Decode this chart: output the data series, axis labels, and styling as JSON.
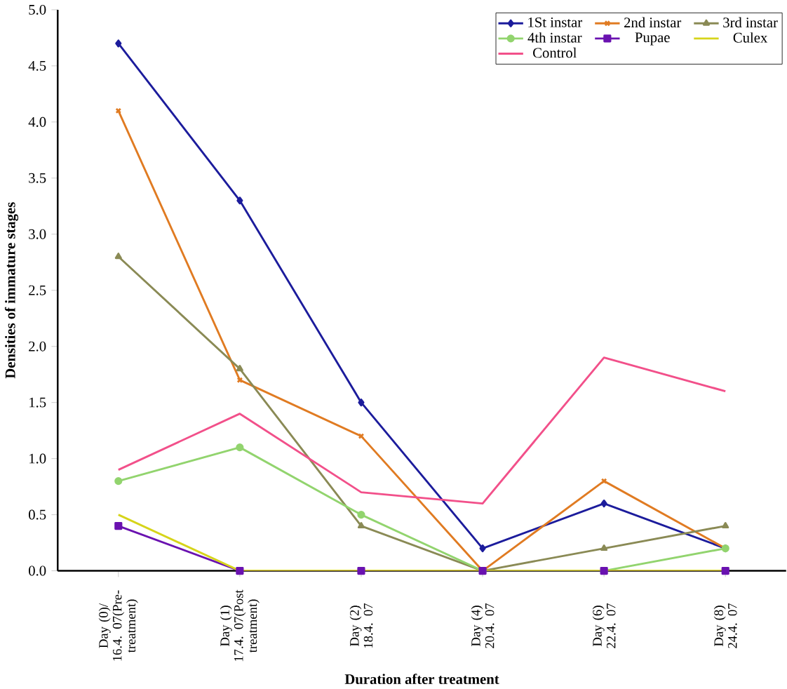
{
  "chart_data": {
    "type": "line",
    "xlabel": "Duration after treatment",
    "ylabel": "Densities of immature stages",
    "categories": [
      "Day (0)/ 16.4. 07(Pre-treatment)",
      "Day (1) 17.4. 07(Post treatment)",
      "Day (2) 18.4. 07",
      "Day (4) 20.4. 07",
      "Day (6) 22.4. 07",
      "Day (8) 24.4. 07"
    ],
    "series": [
      {
        "name": "1St instar",
        "color": "#1c1c9c",
        "marker": "diamond",
        "values": [
          4.7,
          3.3,
          1.5,
          0.2,
          0.6,
          0.2
        ]
      },
      {
        "name": "2nd instar",
        "color": "#e07b22",
        "marker": "cross",
        "values": [
          4.1,
          1.7,
          1.2,
          0.0,
          0.8,
          0.2
        ]
      },
      {
        "name": "3rd instar",
        "color": "#8a8a55",
        "marker": "triangle",
        "values": [
          2.8,
          1.8,
          0.4,
          0.0,
          0.2,
          0.4
        ]
      },
      {
        "name": "4th instar",
        "color": "#92d46e",
        "marker": "circle",
        "values": [
          0.8,
          1.1,
          0.5,
          0.0,
          0.0,
          0.2
        ]
      },
      {
        "name": "Pupae",
        "color": "#6a12b0",
        "marker": "square",
        "values": [
          0.4,
          0.0,
          0.0,
          0.0,
          0.0,
          0.0
        ]
      },
      {
        "name": "Culex",
        "color": "#d6d41a",
        "marker": "none",
        "values": [
          0.5,
          0.0,
          0.0,
          0.0,
          0.0,
          0.0
        ]
      },
      {
        "name": "Control",
        "color": "#f2508a",
        "marker": "none",
        "values": [
          0.9,
          1.4,
          0.7,
          0.6,
          1.9,
          1.6
        ]
      }
    ],
    "ylim": [
      0,
      5
    ],
    "yticks": [
      {
        "value": 0,
        "label": "0.0"
      },
      0.5,
      {
        "value": 1,
        "label": "1.0"
      },
      1.5,
      {
        "value": 2,
        "label": "2.0"
      },
      2.5,
      {
        "value": 3,
        "label": "3.0"
      },
      3.5,
      {
        "value": 4,
        "label": "4.0"
      },
      4.5,
      {
        "value": 5,
        "label": "5.0"
      }
    ],
    "grid": false,
    "legend": "top right"
  }
}
